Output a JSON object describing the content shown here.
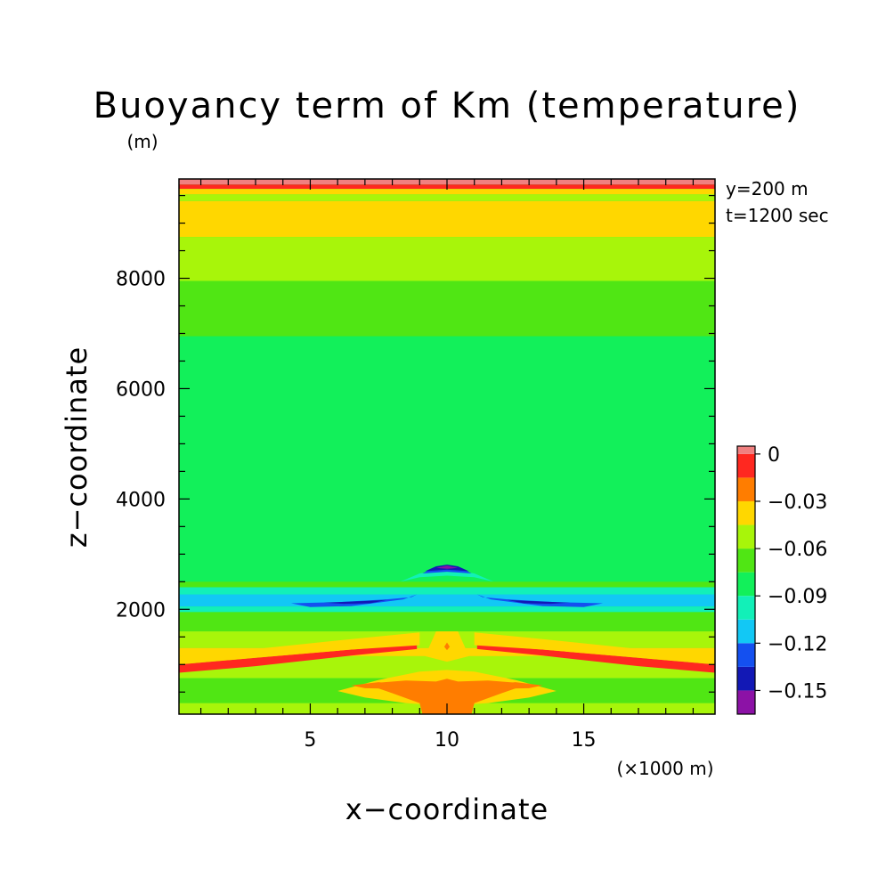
{
  "chart_data": {
    "type": "heatmap",
    "title": "Buoyancy term of Km (temperature)",
    "xlabel": "x−coordinate",
    "ylabel": "z−coordinate",
    "x_unit": "(×1000 m)",
    "y_unit": "(m)",
    "annotations": [
      "y=200 m",
      "t=1200 sec"
    ],
    "xlim": [
      0.2,
      19.8
    ],
    "ylim": [
      100,
      9800
    ],
    "x_ticks": [
      5,
      10,
      15
    ],
    "x_tick_labels": [
      "5",
      "10",
      "15"
    ],
    "y_ticks": [
      2000,
      4000,
      6000,
      8000
    ],
    "y_tick_labels": [
      "2000",
      "4000",
      "6000",
      "8000"
    ],
    "colorbar": {
      "levels": [
        -0.165,
        -0.15,
        -0.135,
        -0.12,
        -0.105,
        -0.09,
        -0.075,
        -0.06,
        -0.045,
        -0.03,
        -0.015,
        0,
        0.005
      ],
      "colors": [
        "#8c12a6",
        "#1218b5",
        "#1450f0",
        "#12c8f5",
        "#12f0b8",
        "#12f05a",
        "#50e614",
        "#a8f50a",
        "#ffd700",
        "#ff7d00",
        "#ff2820",
        "#f08080"
      ],
      "tick_values": [
        0,
        -0.03,
        -0.06,
        -0.09,
        -0.12,
        -0.15
      ],
      "tick_labels": [
        "0",
        "−0.03",
        "−0.06",
        "−0.09",
        "−0.12",
        "−0.15"
      ]
    },
    "background_value": -0.08,
    "horizontal_bands": [
      {
        "z0": 9700,
        "z1": 9800,
        "value": 0.002
      },
      {
        "z0": 9620,
        "z1": 9700,
        "value": -0.007
      },
      {
        "z0": 9520,
        "z1": 9620,
        "value": -0.04
      },
      {
        "z0": 9400,
        "z1": 9520,
        "value": -0.055
      },
      {
        "z0": 8750,
        "z1": 9400,
        "value": -0.038
      },
      {
        "z0": 7950,
        "z1": 8750,
        "value": -0.052
      },
      {
        "z0": 6950,
        "z1": 7950,
        "value": -0.066
      },
      {
        "z0": 2400,
        "z1": 2500,
        "value": -0.066
      },
      {
        "z0": 2270,
        "z1": 2400,
        "value": -0.095
      },
      {
        "z0": 2050,
        "z1": 2270,
        "value": -0.11
      },
      {
        "z0": 1950,
        "z1": 2050,
        "value": -0.095
      },
      {
        "z0": 1600,
        "z1": 1950,
        "value": -0.066
      },
      {
        "z0": 1300,
        "z1": 1600,
        "value": -0.052
      },
      {
        "z0": 1150,
        "z1": 1300,
        "value": -0.038
      },
      {
        "z0": 750,
        "z1": 1150,
        "value": -0.052
      },
      {
        "z0": 300,
        "z1": 750,
        "value": -0.066
      },
      {
        "z0": 100,
        "z1": 300,
        "value": -0.052
      }
    ],
    "features": [
      {
        "label": "left red slanted band",
        "value": -0.008,
        "poly": [
          [
            0.2,
            1000
          ],
          [
            3,
            1120
          ],
          [
            6.5,
            1270
          ],
          [
            8.9,
            1360
          ],
          [
            8.9,
            1280
          ],
          [
            6.5,
            1160
          ],
          [
            3,
            970
          ],
          [
            0.2,
            850
          ]
        ]
      },
      {
        "label": "right red slanted band",
        "value": -0.008,
        "poly": [
          [
            19.8,
            1000
          ],
          [
            17,
            1120
          ],
          [
            13.5,
            1270
          ],
          [
            11.1,
            1360
          ],
          [
            11.1,
            1280
          ],
          [
            13.5,
            1160
          ],
          [
            17,
            970
          ],
          [
            19.8,
            850
          ]
        ]
      },
      {
        "label": "left yellow slanted band",
        "value": -0.038,
        "poly": [
          [
            0.2,
            1150
          ],
          [
            3,
            1280
          ],
          [
            6.5,
            1460
          ],
          [
            9,
            1580
          ],
          [
            9,
            1350
          ],
          [
            6.5,
            1270
          ],
          [
            3,
            1120
          ],
          [
            0.2,
            1000
          ]
        ]
      },
      {
        "label": "right yellow slanted band",
        "value": -0.038,
        "poly": [
          [
            19.8,
            1150
          ],
          [
            17,
            1280
          ],
          [
            13.5,
            1460
          ],
          [
            11,
            1580
          ],
          [
            11,
            1350
          ],
          [
            13.5,
            1270
          ],
          [
            17,
            1120
          ],
          [
            19.8,
            1000
          ]
        ]
      },
      {
        "label": "central low-level yellow region",
        "value": -0.04,
        "poly": [
          [
            6,
            520
          ],
          [
            7.5,
            720
          ],
          [
            9,
            870
          ],
          [
            10,
            900
          ],
          [
            11,
            870
          ],
          [
            12.5,
            720
          ],
          [
            14,
            520
          ],
          [
            13,
            400
          ],
          [
            11.5,
            300
          ],
          [
            10,
            250
          ],
          [
            8.5,
            300
          ],
          [
            7,
            400
          ]
        ]
      },
      {
        "label": "central yellow core",
        "value": -0.04,
        "poly": [
          [
            9.2,
            1150
          ],
          [
            9.6,
            1600
          ],
          [
            10.4,
            1600
          ],
          [
            10.8,
            1150
          ],
          [
            10,
            1050
          ]
        ]
      },
      {
        "label": "central orange plume",
        "value": -0.02,
        "poly": [
          [
            7,
            650
          ],
          [
            8.5,
            710
          ],
          [
            9.6,
            690
          ],
          [
            10,
            740
          ],
          [
            10.4,
            690
          ],
          [
            11.5,
            710
          ],
          [
            13,
            650
          ],
          [
            12,
            480
          ],
          [
            11,
            300
          ],
          [
            10.9,
            100
          ],
          [
            9.1,
            100
          ],
          [
            9,
            300
          ],
          [
            8,
            480
          ]
        ]
      },
      {
        "label": "left orange low streak",
        "value": -0.02,
        "poly": [
          [
            6.5,
            620
          ],
          [
            7.5,
            680
          ],
          [
            8.5,
            630
          ],
          [
            8,
            560
          ],
          [
            7,
            570
          ]
        ]
      },
      {
        "label": "right orange low streak",
        "value": -0.02,
        "poly": [
          [
            13.5,
            620
          ],
          [
            12.5,
            680
          ],
          [
            11.5,
            630
          ],
          [
            12,
            560
          ],
          [
            13,
            570
          ]
        ]
      },
      {
        "label": "central orange spot",
        "value": -0.02,
        "poly": [
          [
            9.9,
            1320
          ],
          [
            10,
            1400
          ],
          [
            10.1,
            1320
          ],
          [
            10,
            1260
          ]
        ]
      },
      {
        "label": "left blue lobe",
        "value": -0.125,
        "poly": [
          [
            4.3,
            2110
          ],
          [
            6,
            2130
          ],
          [
            7.8,
            2180
          ],
          [
            8.7,
            2220
          ],
          [
            8.9,
            2270
          ],
          [
            8.4,
            2180
          ],
          [
            6.5,
            2060
          ],
          [
            5,
            2040
          ]
        ]
      },
      {
        "label": "right blue lobe",
        "value": -0.125,
        "poly": [
          [
            15.7,
            2110
          ],
          [
            14,
            2130
          ],
          [
            12.2,
            2180
          ],
          [
            11.3,
            2220
          ],
          [
            11.1,
            2270
          ],
          [
            11.6,
            2180
          ],
          [
            13.5,
            2060
          ],
          [
            15,
            2040
          ]
        ]
      },
      {
        "label": "left navy lobe",
        "value": -0.14,
        "poly": [
          [
            5.5,
            2120
          ],
          [
            7,
            2150
          ],
          [
            7.8,
            2170
          ],
          [
            7.2,
            2110
          ],
          [
            6.2,
            2100
          ]
        ]
      },
      {
        "label": "right navy lobe",
        "value": -0.14,
        "poly": [
          [
            14.5,
            2120
          ],
          [
            13,
            2150
          ],
          [
            12.2,
            2170
          ],
          [
            12.8,
            2110
          ],
          [
            13.8,
            2100
          ]
        ]
      },
      {
        "label": "central cyan arc",
        "value": -0.095,
        "poly": [
          [
            8.3,
            2500
          ],
          [
            9,
            2650
          ],
          [
            10,
            2730
          ],
          [
            11,
            2650
          ],
          [
            11.7,
            2500
          ],
          [
            11,
            2580
          ],
          [
            10,
            2610
          ],
          [
            9,
            2580
          ]
        ]
      },
      {
        "label": "central blue arc",
        "value": -0.125,
        "poly": [
          [
            9.1,
            2650
          ],
          [
            9.5,
            2750
          ],
          [
            10,
            2800
          ],
          [
            10.5,
            2750
          ],
          [
            10.9,
            2650
          ],
          [
            10,
            2680
          ]
        ]
      },
      {
        "label": "central navy arc",
        "value": -0.145,
        "poly": [
          [
            9.2,
            2690
          ],
          [
            9.6,
            2780
          ],
          [
            10,
            2810
          ],
          [
            10.4,
            2780
          ],
          [
            10.8,
            2690
          ],
          [
            10,
            2720
          ]
        ]
      },
      {
        "label": "central purple core",
        "value": -0.16,
        "poly": [
          [
            9.6,
            2750
          ],
          [
            10,
            2790
          ],
          [
            10.4,
            2750
          ],
          [
            10,
            2735
          ]
        ]
      }
    ]
  }
}
